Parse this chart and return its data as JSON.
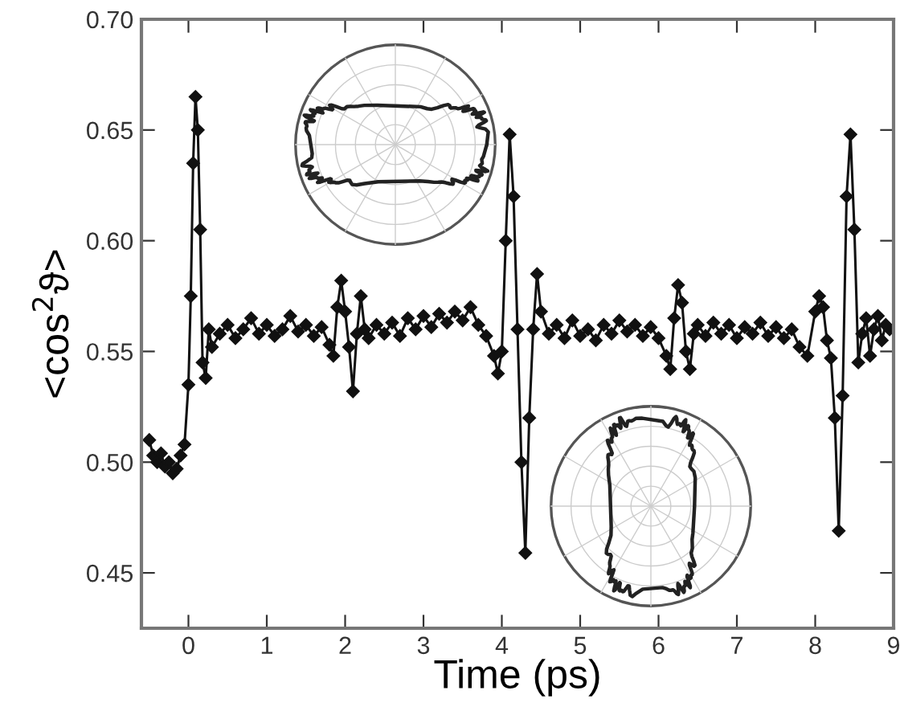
{
  "chart_data": {
    "type": "line",
    "xlabel": "Time (ps)",
    "ylabel": "<cos$^{2}$ϑ>",
    "marker": "diamond",
    "line_style": "solid",
    "grid": false,
    "legend": false,
    "xlim": [
      -0.6,
      9.0
    ],
    "xticks": [
      0,
      1,
      2,
      3,
      4,
      5,
      6,
      7,
      8,
      9
    ],
    "ylim": [
      0.425,
      0.7
    ],
    "yticks": [
      {
        "value": 0.45,
        "label": "0.45"
      },
      {
        "value": 0.5,
        "label": "0.50"
      },
      {
        "value": 0.55,
        "label": "0.55"
      },
      {
        "value": 0.6,
        "label": "0.60"
      },
      {
        "value": 0.65,
        "label": "0.65"
      },
      {
        "value": 0.7,
        "label": "0.70"
      }
    ],
    "series": [
      {
        "color": "#111111",
        "x": [
          -0.5,
          -0.45,
          -0.4,
          -0.35,
          -0.3,
          -0.25,
          -0.2,
          -0.15,
          -0.1,
          -0.05,
          0.0,
          0.03,
          0.06,
          0.09,
          0.12,
          0.15,
          0.18,
          0.22,
          0.26,
          0.3,
          0.4,
          0.5,
          0.6,
          0.7,
          0.8,
          0.9,
          1.0,
          1.1,
          1.2,
          1.3,
          1.4,
          1.5,
          1.6,
          1.7,
          1.8,
          1.85,
          1.9,
          1.95,
          2.0,
          2.05,
          2.1,
          2.15,
          2.2,
          2.25,
          2.3,
          2.4,
          2.5,
          2.6,
          2.7,
          2.8,
          2.9,
          3.0,
          3.1,
          3.2,
          3.3,
          3.4,
          3.5,
          3.6,
          3.7,
          3.8,
          3.9,
          3.95,
          4.0,
          4.05,
          4.1,
          4.15,
          4.2,
          4.25,
          4.3,
          4.35,
          4.4,
          4.45,
          4.5,
          4.6,
          4.7,
          4.8,
          4.9,
          5.0,
          5.1,
          5.2,
          5.3,
          5.4,
          5.5,
          5.6,
          5.7,
          5.8,
          5.9,
          6.0,
          6.1,
          6.15,
          6.2,
          6.25,
          6.3,
          6.35,
          6.4,
          6.45,
          6.5,
          6.6,
          6.7,
          6.8,
          6.9,
          7.0,
          7.1,
          7.2,
          7.3,
          7.4,
          7.5,
          7.6,
          7.7,
          7.8,
          7.9,
          8.0,
          8.05,
          8.1,
          8.15,
          8.2,
          8.25,
          8.3,
          8.35,
          8.4,
          8.45,
          8.5,
          8.55,
          8.6,
          8.65,
          8.7,
          8.75,
          8.8,
          8.85,
          8.9,
          8.95
        ],
        "values": [
          0.51,
          0.503,
          0.5,
          0.504,
          0.498,
          0.5,
          0.495,
          0.497,
          0.503,
          0.508,
          0.535,
          0.575,
          0.635,
          0.665,
          0.65,
          0.605,
          0.545,
          0.538,
          0.56,
          0.552,
          0.558,
          0.562,
          0.556,
          0.56,
          0.565,
          0.558,
          0.562,
          0.557,
          0.56,
          0.566,
          0.559,
          0.562,
          0.557,
          0.561,
          0.553,
          0.548,
          0.57,
          0.582,
          0.568,
          0.552,
          0.532,
          0.558,
          0.575,
          0.56,
          0.556,
          0.562,
          0.558,
          0.563,
          0.557,
          0.565,
          0.56,
          0.566,
          0.561,
          0.567,
          0.563,
          0.568,
          0.564,
          0.57,
          0.562,
          0.557,
          0.548,
          0.54,
          0.55,
          0.6,
          0.648,
          0.62,
          0.56,
          0.5,
          0.459,
          0.52,
          0.56,
          0.585,
          0.568,
          0.558,
          0.562,
          0.556,
          0.564,
          0.557,
          0.56,
          0.555,
          0.562,
          0.558,
          0.564,
          0.559,
          0.562,
          0.557,
          0.561,
          0.556,
          0.548,
          0.542,
          0.565,
          0.58,
          0.572,
          0.55,
          0.542,
          0.558,
          0.562,
          0.557,
          0.563,
          0.558,
          0.562,
          0.556,
          0.561,
          0.558,
          0.563,
          0.557,
          0.561,
          0.556,
          0.56,
          0.552,
          0.548,
          0.568,
          0.575,
          0.57,
          0.555,
          0.547,
          0.52,
          0.469,
          0.53,
          0.62,
          0.648,
          0.605,
          0.545,
          0.558,
          0.565,
          0.548,
          0.56,
          0.566,
          0.555,
          0.562,
          0.56
        ]
      }
    ]
  }
}
